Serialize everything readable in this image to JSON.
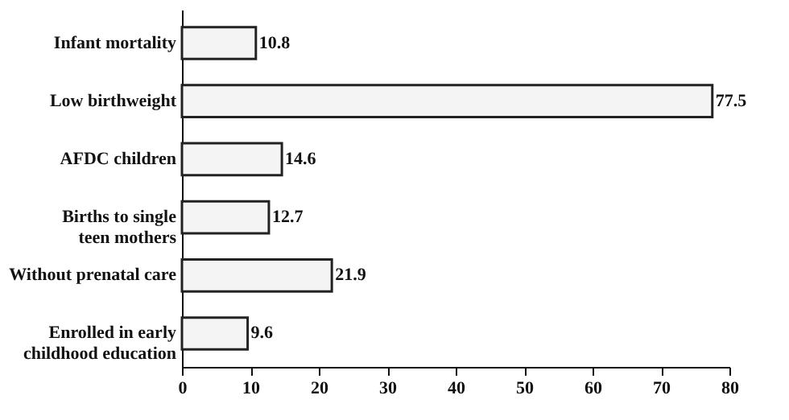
{
  "chart_data": {
    "type": "bar",
    "orientation": "horizontal",
    "categories": [
      "Infant mortality",
      "Low birthweight",
      "AFDC children",
      "Births to single teen mothers",
      "Without prenatal care",
      "Enrolled in early childhood education"
    ],
    "values": [
      10.8,
      77.5,
      14.6,
      12.7,
      21.9,
      9.6
    ],
    "color": "#f4f4f4",
    "xlim": [
      0,
      80
    ],
    "xticks": [
      0,
      10,
      20,
      30,
      40,
      50,
      60,
      70,
      80
    ],
    "data_labels": true
  }
}
